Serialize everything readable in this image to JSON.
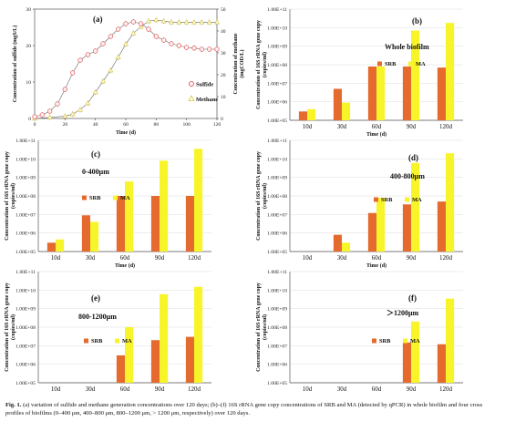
{
  "caption": {
    "label": "Fig. 1.",
    "text": "(a) variation of sulfide and methane generation concentrations over 120 days; (b)–(f) 16S rRNA gene copy concentrations of SRB and MA (detected by qPCR) in whole biofilm and four cross profiles of biofilms (0–400 μm, 400–800 μm, 800–1200 μm, > 1200 μm, respectively) over 120 days."
  },
  "colors": {
    "srb": "#e46a2d",
    "ma": "#f8f42a",
    "sulfide": "#e05555",
    "methane": "#d9c74a",
    "errorbar": "#666666"
  },
  "chart_data": [
    {
      "type": "line",
      "panel": "(a)",
      "xlabel": "Time (d)",
      "ylabel_left": "Concentration of sulfide (mgS/L)",
      "ylabel_right": "Concentration of methane (mgCOD/L)",
      "xlim": [
        0,
        120
      ],
      "ylim_left": [
        0,
        30
      ],
      "ylim_right": [
        0,
        50
      ],
      "xticks": [
        0,
        20,
        40,
        60,
        80,
        100,
        120
      ],
      "yticks_left": [
        0,
        10,
        20,
        30
      ],
      "yticks_right": [
        0,
        10,
        20,
        30,
        40,
        50
      ],
      "series": [
        {
          "name": "Sulfide",
          "axis": "left",
          "marker": "circle",
          "x": [
            0,
            5,
            10,
            15,
            20,
            25,
            30,
            35,
            40,
            45,
            50,
            55,
            60,
            65,
            70,
            75,
            80,
            85,
            90,
            95,
            100,
            105,
            110,
            115,
            120
          ],
          "y": [
            0.5,
            1.0,
            2.0,
            4.0,
            8.0,
            12.5,
            16.0,
            17.5,
            18.5,
            20.5,
            22.5,
            24.5,
            26.0,
            26.5,
            26.0,
            24.5,
            22.5,
            21.5,
            20.5,
            20.0,
            19.5,
            19.3,
            19.0,
            19.0,
            19.0
          ]
        },
        {
          "name": "Methane",
          "axis": "right",
          "marker": "triangle",
          "x": [
            0,
            10,
            20,
            25,
            30,
            35,
            40,
            45,
            50,
            55,
            60,
            65,
            70,
            75,
            80,
            85,
            90,
            95,
            100,
            105,
            110,
            115,
            120
          ],
          "y": [
            0,
            0.5,
            1.0,
            2.0,
            4.0,
            7.0,
            12.0,
            17.0,
            22.0,
            28.0,
            34.0,
            39.0,
            42.0,
            44.5,
            45.0,
            44.5,
            44.0,
            44.0,
            44.0,
            44.0,
            44.0,
            44.0,
            44.0
          ]
        }
      ],
      "legend": [
        "Sulfide",
        "Methane"
      ]
    },
    {
      "type": "bar",
      "panel": "(b)",
      "title": "Whole biofilm",
      "ylabel": "Concentration of 16S rRNA gene copy (copies/ml)",
      "log_scale": true,
      "ylim": [
        100000,
        100000000000
      ],
      "ytick_labels": [
        "1.00E+05",
        "1.00E+06",
        "1.00E+07",
        "1.00E+08",
        "1.00E+09",
        "1.00E+10",
        "1.00E+11"
      ],
      "categories": [
        "10d",
        "30d",
        "60d",
        "90d",
        "120d"
      ],
      "xlabel": "Time (d)",
      "series": [
        {
          "name": "SRB",
          "values": [
            300000,
            5000000,
            80000000,
            80000000,
            70000000
          ]
        },
        {
          "name": "MA",
          "values": [
            400000,
            900000,
            80000000,
            7000000000,
            18000000000
          ]
        }
      ]
    },
    {
      "type": "bar",
      "panel": "(c)",
      "title": "0-400μm",
      "ylabel": "Concentration of 16S rRNA gene copy (copies/ml)",
      "log_scale": true,
      "ylim": [
        100000,
        100000000000
      ],
      "ytick_labels": [
        "1.00E+05",
        "1.00E+06",
        "1.00E+07",
        "1.00E+08",
        "1.00E+09",
        "1.00E+10",
        "1.00E+11"
      ],
      "categories": [
        "10d",
        "30d",
        "60d",
        "90d",
        "120d"
      ],
      "xlabel": "Time (d)",
      "series": [
        {
          "name": "SRB",
          "values": [
            300000,
            9000000,
            100000000,
            100000000,
            100000000
          ]
        },
        {
          "name": "MA",
          "values": [
            450000,
            4000000,
            600000000,
            8000000000,
            35000000000
          ]
        }
      ]
    },
    {
      "type": "bar",
      "panel": "(d)",
      "title": "400-800μm",
      "ylabel": "Concentration of 16S rRNA gene copy (copies/ml)",
      "log_scale": true,
      "ylim": [
        100000,
        100000000000
      ],
      "ytick_labels": [
        "1.00E+05",
        "1.00E+06",
        "1.00E+07",
        "1.00E+08",
        "1.00E+09",
        "1.00E+10",
        "1.00E+11"
      ],
      "categories": [
        "10d",
        "30d",
        "60d",
        "90d",
        "120d"
      ],
      "xlabel": "Time (d)",
      "series": [
        {
          "name": "SRB",
          "values": [
            null,
            800000,
            12000000,
            35000000,
            50000000
          ]
        },
        {
          "name": "MA",
          "values": [
            null,
            300000,
            80000000,
            6000000000,
            20000000000
          ]
        }
      ]
    },
    {
      "type": "bar",
      "panel": "(e)",
      "title": "800-1200μm",
      "ylabel": "Concentration of 16S rRNA gene copy (copies/ml)",
      "log_scale": true,
      "ylim": [
        100000,
        100000000000
      ],
      "ytick_labels": [
        "1.00E+05",
        "1.00E+06",
        "1.00E+07",
        "1.00E+08",
        "1.00E+09",
        "1.00E+10",
        "1.00E+11"
      ],
      "categories": [
        "10d",
        "30d",
        "60d",
        "90d",
        "120d"
      ],
      "xlabel": "",
      "series": [
        {
          "name": "SRB",
          "values": [
            null,
            null,
            3000000,
            20000000,
            30000000
          ]
        },
        {
          "name": "MA",
          "values": [
            null,
            null,
            100000000,
            6000000000,
            15000000000
          ]
        }
      ]
    },
    {
      "type": "bar",
      "panel": "(f)",
      "title": "＞1200μm",
      "ylabel": "Concentration of 16S rRNA gene copy (copies/ml)",
      "log_scale": true,
      "ylim": [
        100000,
        100000000000
      ],
      "ytick_labels": [
        "1.00E+05",
        "1.00E+06",
        "1.00E+07",
        "1.00E+08",
        "1.00E+09",
        "1.00E+10",
        "1.00E+11"
      ],
      "categories": [
        "10d",
        "30d",
        "60d",
        "90d",
        "120d"
      ],
      "xlabel": "",
      "series": [
        {
          "name": "SRB",
          "values": [
            null,
            null,
            null,
            15000000,
            12000000
          ]
        },
        {
          "name": "MA",
          "values": [
            null,
            null,
            null,
            200000000,
            3500000000
          ]
        }
      ]
    }
  ]
}
